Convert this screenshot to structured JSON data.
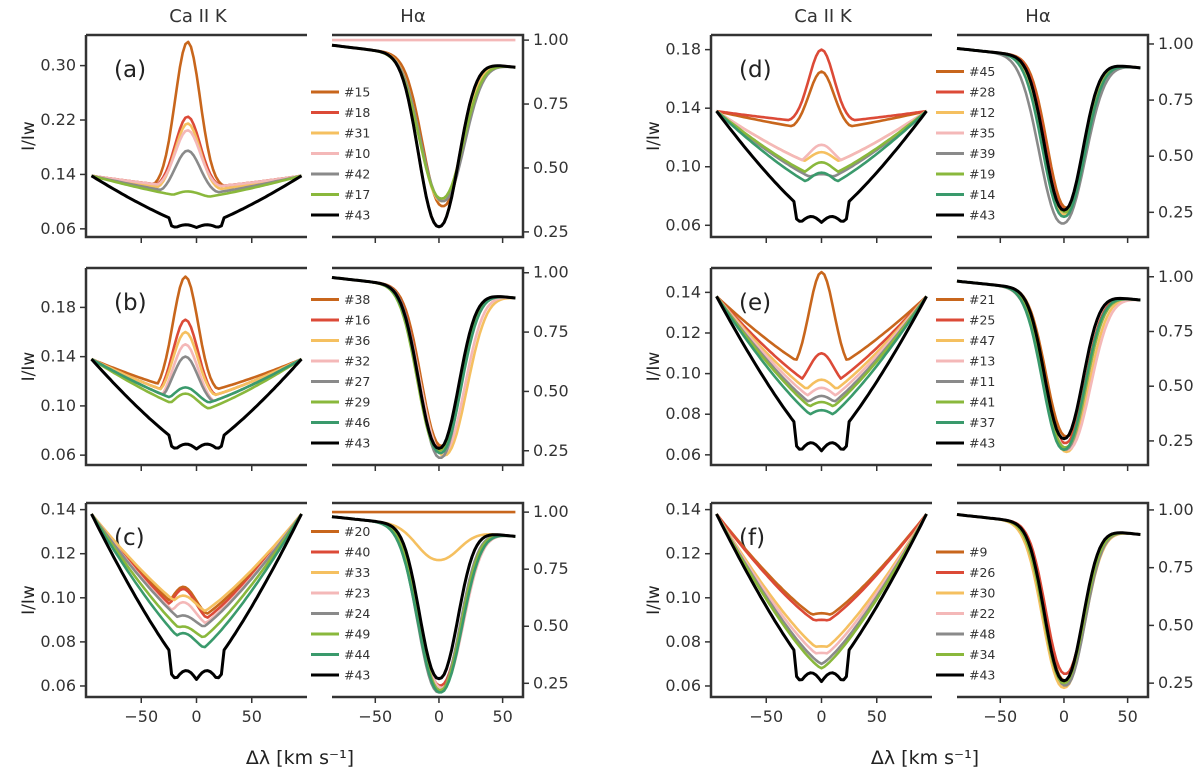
{
  "titles": {
    "caii": "Ca II K",
    "ha": "Hα"
  },
  "labels": {
    "y": "I/Iw",
    "x": "Δλ [km s⁻¹]"
  },
  "colors": {
    "orange": "#c8661c",
    "red": "#dc4a37",
    "yellow": "#f5c060",
    "pink": "#f4b8b8",
    "gray": "#8a8a8a",
    "lime": "#8ab83c",
    "teal": "#3a9a6c",
    "black": "#000000"
  },
  "chart_data": [
    {
      "id": "a",
      "label": "(a)",
      "type": "line",
      "caii": {
        "xlim": [
          -100,
          100
        ],
        "ylim": [
          0.048,
          0.345
        ],
        "yticks": [
          0.06,
          0.14,
          0.22,
          0.3
        ],
        "ytick_labels": [
          "0.06",
          "0.14",
          "0.22",
          "0.30"
        ],
        "xticks": [
          -50,
          0,
          50
        ],
        "xtick_labels": [
          "−50",
          "0",
          "50"
        ],
        "peak_x": -8
      },
      "ha": {
        "xlim": [
          -84,
          66
        ],
        "ylim": [
          0.23,
          1.02
        ],
        "yticks": [
          0.25,
          0.5,
          0.75,
          1.0
        ],
        "ytick_labels": [
          "0.25",
          "0.50",
          "0.75",
          "1.00"
        ],
        "xticks": [
          -50,
          0,
          50
        ],
        "xtick_labels": [
          "−50",
          "0",
          "50"
        ]
      },
      "series": [
        {
          "name": "#15",
          "color": "orange",
          "caii_peak": 0.335,
          "caii_shoulder": 0.12,
          "ha_core": 0.35,
          "ha_shift": 3,
          "ha_width": 21
        },
        {
          "name": "#18",
          "color": "red",
          "caii_peak": 0.225,
          "caii_shoulder": 0.12,
          "ha_core": 0.27,
          "ha_shift": 0,
          "ha_width": 21
        },
        {
          "name": "#31",
          "color": "yellow",
          "caii_peak": 0.215,
          "caii_shoulder": 0.115,
          "ha_core": 0.37,
          "ha_shift": 2,
          "ha_width": 22
        },
        {
          "name": "#10",
          "color": "pink",
          "caii_peak": 0.205,
          "caii_shoulder": 0.12,
          "ha_core": 1.0,
          "ha_shift": 0,
          "ha_width": 20
        },
        {
          "name": "#42",
          "color": "gray",
          "caii_peak": 0.175,
          "caii_shoulder": 0.11,
          "ha_core": 0.37,
          "ha_shift": 3,
          "ha_width": 23
        },
        {
          "name": "#17",
          "color": "lime",
          "caii_peak": 0.115,
          "caii_shoulder": 0.105,
          "ha_core": 0.38,
          "ha_shift": 2,
          "ha_width": 23
        },
        {
          "name": "#43",
          "color": "black",
          "caii_peak": 0.062,
          "caii_shoulder": 0.07,
          "ha_core": 0.27,
          "ha_shift": 0,
          "ha_width": 21
        }
      ]
    },
    {
      "id": "b",
      "label": "(b)",
      "type": "line",
      "caii": {
        "xlim": [
          -100,
          100
        ],
        "ylim": [
          0.052,
          0.212
        ],
        "yticks": [
          0.06,
          0.1,
          0.14,
          0.18
        ],
        "ytick_labels": [
          "0.06",
          "0.10",
          "0.14",
          "0.18"
        ],
        "xticks": [
          -50,
          0,
          50
        ],
        "xtick_labels": [
          "−50",
          "0",
          "50"
        ],
        "peak_x": -10
      },
      "ha": {
        "xlim": [
          -84,
          66
        ],
        "ylim": [
          0.19,
          1.02
        ],
        "yticks": [
          0.25,
          0.5,
          0.75,
          1.0
        ],
        "ytick_labels": [
          "0.25",
          "0.50",
          "0.75",
          "1.00"
        ],
        "xticks": [
          -50,
          0,
          50
        ],
        "xtick_labels": [
          "−50",
          "0",
          "50"
        ]
      },
      "series": [
        {
          "name": "#38",
          "color": "orange",
          "caii_peak": 0.205,
          "caii_shoulder": 0.11,
          "ha_core": 0.27,
          "ha_shift": 2,
          "ha_width": 21
        },
        {
          "name": "#16",
          "color": "red",
          "caii_peak": 0.17,
          "caii_shoulder": 0.105,
          "ha_core": 0.26,
          "ha_shift": 1,
          "ha_width": 21
        },
        {
          "name": "#36",
          "color": "yellow",
          "caii_peak": 0.16,
          "caii_shoulder": 0.105,
          "ha_core": 0.23,
          "ha_shift": 4,
          "ha_width": 24
        },
        {
          "name": "#32",
          "color": "pink",
          "caii_peak": 0.15,
          "caii_shoulder": 0.1,
          "ha_core": 0.24,
          "ha_shift": 3,
          "ha_width": 23
        },
        {
          "name": "#27",
          "color": "gray",
          "caii_peak": 0.14,
          "caii_shoulder": 0.1,
          "ha_core": 0.22,
          "ha_shift": 1,
          "ha_width": 21
        },
        {
          "name": "#29",
          "color": "lime",
          "caii_peak": 0.11,
          "caii_shoulder": 0.095,
          "ha_core": 0.25,
          "ha_shift": 0,
          "ha_width": 22
        },
        {
          "name": "#46",
          "color": "teal",
          "caii_peak": 0.115,
          "caii_shoulder": 0.1,
          "ha_core": 0.24,
          "ha_shift": 1,
          "ha_width": 22
        },
        {
          "name": "#43",
          "color": "black",
          "caii_peak": 0.065,
          "caii_shoulder": 0.07,
          "ha_core": 0.26,
          "ha_shift": 0,
          "ha_width": 21
        }
      ]
    },
    {
      "id": "c",
      "label": "(c)",
      "type": "line",
      "caii": {
        "xlim": [
          -100,
          100
        ],
        "ylim": [
          0.055,
          0.143
        ],
        "yticks": [
          0.06,
          0.08,
          0.1,
          0.12,
          0.14
        ],
        "ytick_labels": [
          "0.06",
          "0.08",
          "0.10",
          "0.12",
          "0.14"
        ],
        "xticks": [
          -50,
          0,
          50
        ],
        "xtick_labels": [
          "−50",
          "0",
          "50"
        ],
        "peak_x": -12
      },
      "ha": {
        "xlim": [
          -84,
          66
        ],
        "ylim": [
          0.19,
          1.04
        ],
        "yticks": [
          0.25,
          0.5,
          0.75,
          1.0
        ],
        "ytick_labels": [
          "0.25",
          "0.50",
          "0.75",
          "1.00"
        ],
        "xticks": [
          -50,
          0,
          50
        ],
        "xtick_labels": [
          "−50",
          "0",
          "50"
        ]
      },
      "series": [
        {
          "name": "#20",
          "color": "orange",
          "caii_peak": 0.105,
          "caii_shoulder": 0.09,
          "ha_core": 1.0,
          "ha_shift": 0,
          "ha_width": 20
        },
        {
          "name": "#40",
          "color": "red",
          "caii_peak": 0.104,
          "caii_shoulder": 0.088,
          "ha_core": 0.24,
          "ha_shift": 1,
          "ha_width": 22
        },
        {
          "name": "#33",
          "color": "yellow",
          "caii_peak": 0.101,
          "caii_shoulder": 0.092,
          "ha_core": 0.79,
          "ha_shift": 0,
          "ha_width": 22
        },
        {
          "name": "#23",
          "color": "pink",
          "caii_peak": 0.098,
          "caii_shoulder": 0.086,
          "ha_core": 0.23,
          "ha_shift": 2,
          "ha_width": 23
        },
        {
          "name": "#24",
          "color": "gray",
          "caii_peak": 0.092,
          "caii_shoulder": 0.085,
          "ha_core": 0.21,
          "ha_shift": 0,
          "ha_width": 22
        },
        {
          "name": "#49",
          "color": "lime",
          "caii_peak": 0.087,
          "caii_shoulder": 0.08,
          "ha_core": 0.22,
          "ha_shift": 1,
          "ha_width": 22
        },
        {
          "name": "#44",
          "color": "teal",
          "caii_peak": 0.084,
          "caii_shoulder": 0.075,
          "ha_core": 0.21,
          "ha_shift": 1,
          "ha_width": 23
        },
        {
          "name": "#43",
          "color": "black",
          "caii_peak": 0.063,
          "caii_shoulder": 0.068,
          "ha_core": 0.27,
          "ha_shift": 0,
          "ha_width": 20
        }
      ]
    },
    {
      "id": "d",
      "label": "(d)",
      "type": "line",
      "caii": {
        "xlim": [
          -100,
          100
        ],
        "ylim": [
          0.052,
          0.19
        ],
        "yticks": [
          0.06,
          0.1,
          0.14,
          0.18
        ],
        "ytick_labels": [
          "0.06",
          "0.10",
          "0.14",
          "0.18"
        ],
        "xticks": [
          -50,
          0,
          50
        ],
        "xtick_labels": [
          "−50",
          "0",
          "50"
        ],
        "peak_x": 0
      },
      "ha": {
        "xlim": [
          -84,
          66
        ],
        "ylim": [
          0.14,
          1.04
        ],
        "yticks": [
          0.25,
          0.5,
          0.75,
          1.0
        ],
        "ytick_labels": [
          "0.25",
          "0.50",
          "0.75",
          "1.00"
        ],
        "xticks": [
          -50,
          0,
          50
        ],
        "xtick_labels": [
          "−50",
          "0",
          "50"
        ]
      },
      "series": [
        {
          "name": "#45",
          "color": "orange",
          "caii_peak": 0.165,
          "caii_shoulder": 0.125,
          "ha_core": 0.27,
          "ha_shift": 2,
          "ha_width": 20
        },
        {
          "name": "#28",
          "color": "red",
          "caii_peak": 0.18,
          "caii_shoulder": 0.13,
          "ha_core": 0.26,
          "ha_shift": 1,
          "ha_width": 20
        },
        {
          "name": "#12",
          "color": "yellow",
          "caii_peak": 0.11,
          "caii_shoulder": 0.1,
          "ha_core": 0.24,
          "ha_shift": 0,
          "ha_width": 21
        },
        {
          "name": "#35",
          "color": "pink",
          "caii_peak": 0.115,
          "caii_shoulder": 0.1,
          "ha_core": 0.25,
          "ha_shift": 1,
          "ha_width": 21
        },
        {
          "name": "#39",
          "color": "gray",
          "caii_peak": 0.095,
          "caii_shoulder": 0.09,
          "ha_core": 0.2,
          "ha_shift": -1,
          "ha_width": 24
        },
        {
          "name": "#19",
          "color": "lime",
          "caii_peak": 0.103,
          "caii_shoulder": 0.092,
          "ha_core": 0.25,
          "ha_shift": 1,
          "ha_width": 21
        },
        {
          "name": "#14",
          "color": "teal",
          "caii_peak": 0.096,
          "caii_shoulder": 0.085,
          "ha_core": 0.23,
          "ha_shift": 0,
          "ha_width": 22
        },
        {
          "name": "#43",
          "color": "black",
          "caii_peak": 0.062,
          "caii_shoulder": 0.07,
          "ha_core": 0.26,
          "ha_shift": 0,
          "ha_width": 20
        }
      ]
    },
    {
      "id": "e",
      "label": "(e)",
      "type": "line",
      "caii": {
        "xlim": [
          -100,
          100
        ],
        "ylim": [
          0.055,
          0.152
        ],
        "yticks": [
          0.06,
          0.08,
          0.1,
          0.12,
          0.14
        ],
        "ytick_labels": [
          "0.06",
          "0.08",
          "0.10",
          "0.12",
          "0.14"
        ],
        "xticks": [
          -50,
          0,
          50
        ],
        "xtick_labels": [
          "−50",
          "0",
          "50"
        ],
        "peak_x": 0
      },
      "ha": {
        "xlim": [
          -84,
          66
        ],
        "ylim": [
          0.14,
          1.04
        ],
        "yticks": [
          0.25,
          0.5,
          0.75,
          1.0
        ],
        "ytick_labels": [
          "0.25",
          "0.50",
          "0.75",
          "1.00"
        ],
        "xticks": [
          -50,
          0,
          50
        ],
        "xtick_labels": [
          "−50",
          "0",
          "50"
        ]
      },
      "series": [
        {
          "name": "#21",
          "color": "orange",
          "caii_peak": 0.15,
          "caii_shoulder": 0.1,
          "ha_core": 0.27,
          "ha_shift": 2,
          "ha_width": 21
        },
        {
          "name": "#25",
          "color": "red",
          "caii_peak": 0.11,
          "caii_shoulder": 0.092,
          "ha_core": 0.24,
          "ha_shift": 1,
          "ha_width": 21
        },
        {
          "name": "#47",
          "color": "yellow",
          "caii_peak": 0.097,
          "caii_shoulder": 0.088,
          "ha_core": 0.2,
          "ha_shift": 2,
          "ha_width": 23
        },
        {
          "name": "#13",
          "color": "pink",
          "caii_peak": 0.093,
          "caii_shoulder": 0.085,
          "ha_core": 0.21,
          "ha_shift": 3,
          "ha_width": 24
        },
        {
          "name": "#11",
          "color": "gray",
          "caii_peak": 0.089,
          "caii_shoulder": 0.082,
          "ha_core": 0.21,
          "ha_shift": 1,
          "ha_width": 22
        },
        {
          "name": "#41",
          "color": "lime",
          "caii_peak": 0.086,
          "caii_shoulder": 0.08,
          "ha_core": 0.22,
          "ha_shift": 1,
          "ha_width": 22
        },
        {
          "name": "#37",
          "color": "teal",
          "caii_peak": 0.082,
          "caii_shoulder": 0.076,
          "ha_core": 0.21,
          "ha_shift": 0,
          "ha_width": 22
        },
        {
          "name": "#43",
          "color": "black",
          "caii_peak": 0.062,
          "caii_shoulder": 0.066,
          "ha_core": 0.26,
          "ha_shift": 0,
          "ha_width": 20
        }
      ]
    },
    {
      "id": "f",
      "label": "(f)",
      "type": "line",
      "caii": {
        "xlim": [
          -100,
          100
        ],
        "ylim": [
          0.055,
          0.143
        ],
        "yticks": [
          0.06,
          0.08,
          0.1,
          0.12,
          0.14
        ],
        "ytick_labels": [
          "0.06",
          "0.08",
          "0.10",
          "0.12",
          "0.14"
        ],
        "xticks": [
          -50,
          0,
          50
        ],
        "xtick_labels": [
          "−50",
          "0",
          "50"
        ],
        "peak_x": 0
      },
      "ha": {
        "xlim": [
          -84,
          66
        ],
        "ylim": [
          0.19,
          1.03
        ],
        "yticks": [
          0.25,
          0.5,
          0.75,
          1.0
        ],
        "ytick_labels": [
          "0.25",
          "0.50",
          "0.75",
          "1.00"
        ],
        "xticks": [
          -50,
          0,
          50
        ],
        "xtick_labels": [
          "−50",
          "0",
          "50"
        ]
      },
      "series": [
        {
          "name": "#9",
          "color": "orange",
          "caii_peak": 0.093,
          "caii_shoulder": 0.09,
          "ha_core": 0.26,
          "ha_shift": 1,
          "ha_width": 21
        },
        {
          "name": "#26",
          "color": "red",
          "caii_peak": 0.09,
          "caii_shoulder": 0.088,
          "ha_core": 0.29,
          "ha_shift": 1,
          "ha_width": 20
        },
        {
          "name": "#30",
          "color": "yellow",
          "caii_peak": 0.078,
          "caii_shoulder": 0.076,
          "ha_core": 0.23,
          "ha_shift": 0,
          "ha_width": 22
        },
        {
          "name": "#22",
          "color": "pink",
          "caii_peak": 0.075,
          "caii_shoulder": 0.073,
          "ha_core": 0.25,
          "ha_shift": 0,
          "ha_width": 21
        },
        {
          "name": "#48",
          "color": "gray",
          "caii_peak": 0.07,
          "caii_shoulder": 0.07,
          "ha_core": 0.24,
          "ha_shift": 1,
          "ha_width": 21
        },
        {
          "name": "#34",
          "color": "lime",
          "caii_peak": 0.068,
          "caii_shoulder": 0.068,
          "ha_core": 0.25,
          "ha_shift": 0,
          "ha_width": 21
        },
        {
          "name": "#43",
          "color": "black",
          "caii_peak": 0.062,
          "caii_shoulder": 0.065,
          "ha_core": 0.26,
          "ha_shift": 0,
          "ha_width": 20
        }
      ]
    }
  ]
}
